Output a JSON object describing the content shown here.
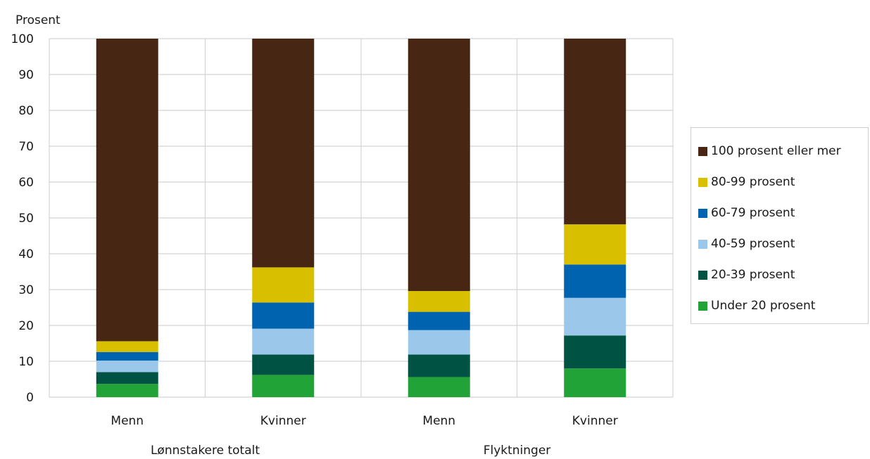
{
  "chart_data": {
    "type": "bar",
    "stacked": true,
    "ylabel": "Prosent",
    "ylim": [
      0,
      100
    ],
    "yticks": [
      0,
      10,
      20,
      30,
      40,
      50,
      60,
      70,
      80,
      90,
      100
    ],
    "categories": [
      "Menn",
      "Kvinner",
      "Menn",
      "Kvinner"
    ],
    "groups": [
      {
        "label": "Lønnstakere totalt",
        "categories": [
          "Menn",
          "Kvinner"
        ]
      },
      {
        "label": "Flyktninger",
        "categories": [
          "Menn",
          "Kvinner"
        ]
      }
    ],
    "series": [
      {
        "name": "Under 20 prosent",
        "color": "#22a338",
        "values": [
          3.7,
          6.2,
          5.6,
          8.0
        ]
      },
      {
        "name": "20-39 prosent",
        "color": "#005343",
        "values": [
          3.3,
          5.7,
          6.3,
          9.2
        ]
      },
      {
        "name": "40-59 prosent",
        "color": "#9bc8ea",
        "values": [
          3.2,
          7.2,
          6.8,
          10.5
        ]
      },
      {
        "name": "60-79 prosent",
        "color": "#0063b0",
        "values": [
          2.4,
          7.3,
          5.1,
          9.3
        ]
      },
      {
        "name": "80-99 prosent",
        "color": "#d8c000",
        "values": [
          3.0,
          9.8,
          5.8,
          11.2
        ]
      },
      {
        "name": "100 prosent eller mer",
        "color": "#472614",
        "values": [
          84.4,
          63.8,
          70.4,
          51.8
        ]
      }
    ],
    "grid": true,
    "legend_position": "right"
  }
}
